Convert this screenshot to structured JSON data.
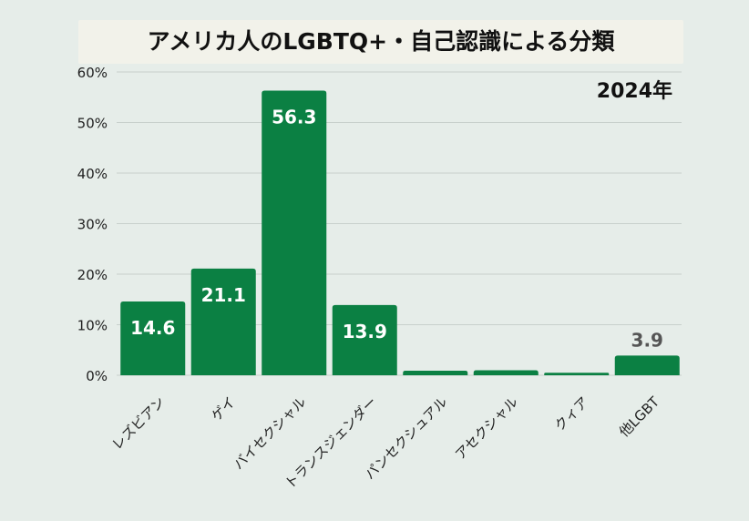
{
  "chart_data": {
    "type": "bar",
    "title": "アメリカ人のLGBTQ+・自己認識による分類",
    "subtitle": "2024年",
    "categories": [
      "レズビアン",
      "ゲイ",
      "バイセクシャル",
      "トランスジェンダー",
      "パンセクシュアル",
      "アセクシャル",
      "クィア",
      "他LGBT"
    ],
    "values": [
      14.6,
      21.1,
      56.3,
      13.9,
      0.9,
      1.0,
      0.5,
      3.9
    ],
    "data_labels": [
      "14.6",
      "21.1",
      "56.3",
      "13.9",
      "",
      "",
      "",
      "3.9"
    ],
    "ylim": [
      0,
      60
    ],
    "yticks": [
      "0%",
      "10%",
      "20%",
      "30%",
      "40%",
      "50%",
      "60%"
    ],
    "grid": true,
    "colors": {
      "bar": "#0b8043",
      "label_inside": "#ffffff",
      "label_outside": "#555555",
      "grid": "#c8d0cc",
      "background": "#e6ede9"
    }
  }
}
